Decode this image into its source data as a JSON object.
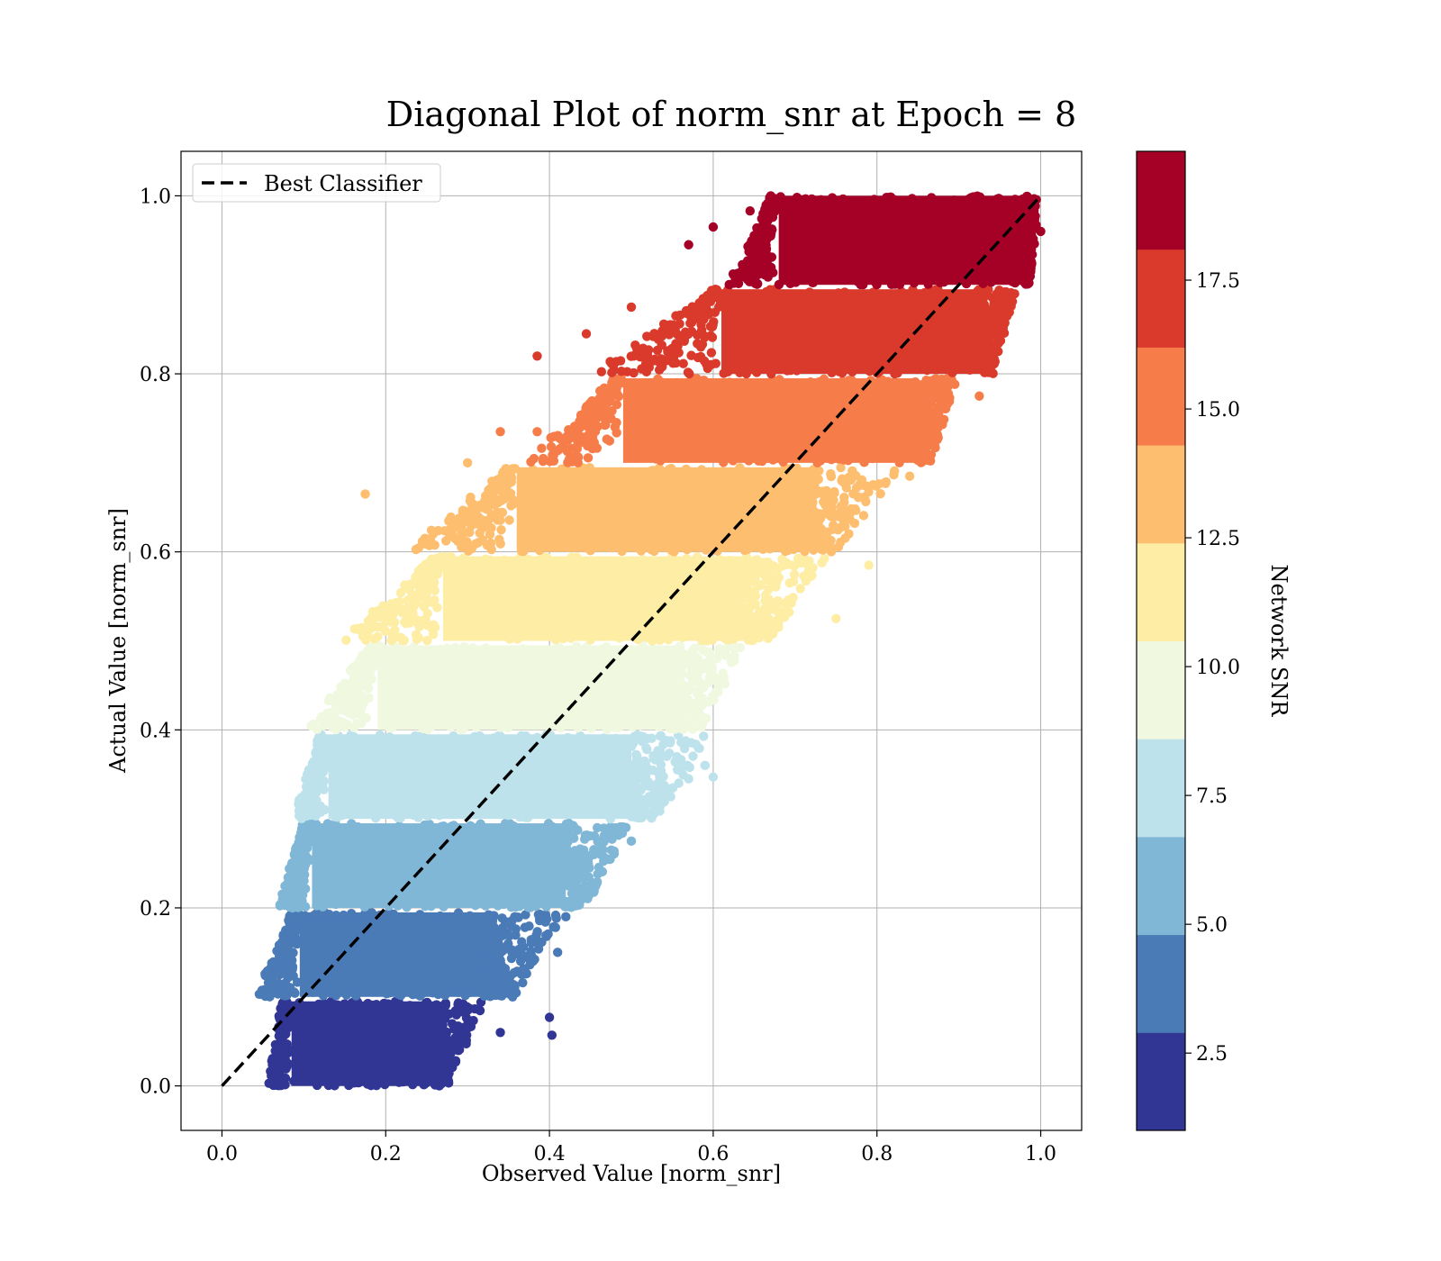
{
  "chart_data": {
    "type": "scatter",
    "title": "Diagonal Plot of norm_snr at Epoch = 8",
    "xlabel": "Observed Value [norm_snr]",
    "ylabel": "Actual Value [norm_snr]",
    "xlim": [
      -0.05,
      1.05
    ],
    "ylim": [
      -0.05,
      1.05
    ],
    "xticks": [
      0.0,
      0.2,
      0.4,
      0.6,
      0.8,
      1.0
    ],
    "yticks": [
      0.0,
      0.2,
      0.4,
      0.6,
      0.8,
      1.0
    ],
    "xtick_labels": [
      "0.0",
      "0.2",
      "0.4",
      "0.6",
      "0.8",
      "1.0"
    ],
    "ytick_labels": [
      "0.0",
      "0.2",
      "0.4",
      "0.6",
      "0.8",
      "1.0"
    ],
    "grid": true,
    "legend": {
      "position": "top-left",
      "entries": [
        {
          "label": "Best Classifier",
          "style": "dashed",
          "color": "#000000"
        }
      ]
    },
    "reference_line": {
      "x": [
        0.0,
        1.0
      ],
      "y": [
        0.0,
        1.0
      ]
    },
    "colorbar": {
      "label": "Network SNR",
      "range": [
        1.0,
        20.0
      ],
      "ticks": [
        2.5,
        5.0,
        7.5,
        10.0,
        12.5,
        15.0,
        17.5
      ],
      "tick_labels": [
        "2.5",
        "5.0",
        "7.5",
        "10.0",
        "12.5",
        "15.0",
        "17.5"
      ],
      "colors": [
        "#313695",
        "#4575b4",
        "#74add1",
        "#abd9e9",
        "#e0f3f8",
        "#ffffbf",
        "#fee090",
        "#fdae61",
        "#f46d43",
        "#d73027",
        "#a50026"
      ],
      "display_colors": [
        "#313695",
        "#4a7bb7",
        "#80b6d6",
        "#bde2ec",
        "#f0f8e0",
        "#feeda4",
        "#fdbe70",
        "#f67d4a",
        "#da3a2b",
        "#a50026"
      ]
    },
    "bands": [
      {
        "y_range": [
          0.0,
          0.095
        ],
        "snr": 1.9,
        "x_core": [
          0.085,
          0.26
        ],
        "x_min": 0.05,
        "x_max": 0.32
      },
      {
        "y_range": [
          0.1,
          0.195
        ],
        "snr": 3.8,
        "x_core": [
          0.095,
          0.33
        ],
        "x_min": 0.03,
        "x_max": 0.42
      },
      {
        "y_range": [
          0.2,
          0.295
        ],
        "snr": 5.7,
        "x_core": [
          0.11,
          0.42
        ],
        "x_min": 0.06,
        "x_max": 0.5
      },
      {
        "y_range": [
          0.3,
          0.395
        ],
        "snr": 7.6,
        "x_core": [
          0.13,
          0.5
        ],
        "x_min": 0.08,
        "x_max": 0.6
      },
      {
        "y_range": [
          0.4,
          0.495
        ],
        "snr": 9.5,
        "x_core": [
          0.19,
          0.56
        ],
        "x_min": 0.07,
        "x_max": 0.64
      },
      {
        "y_range": [
          0.5,
          0.595
        ],
        "snr": 11.4,
        "x_core": [
          0.27,
          0.64
        ],
        "x_min": 0.09,
        "x_max": 0.74
      },
      {
        "y_range": [
          0.6,
          0.695
        ],
        "snr": 13.3,
        "x_core": [
          0.36,
          0.72
        ],
        "x_min": 0.16,
        "x_max": 0.83
      },
      {
        "y_range": [
          0.7,
          0.795
        ],
        "snr": 15.2,
        "x_core": [
          0.49,
          0.85
        ],
        "x_min": 0.32,
        "x_max": 0.9
      },
      {
        "y_range": [
          0.8,
          0.895
        ],
        "snr": 17.1,
        "x_core": [
          0.61,
          0.93
        ],
        "x_min": 0.38,
        "x_max": 0.97
      },
      {
        "y_range": [
          0.9,
          1.0
        ],
        "snr": 19.0,
        "x_core": [
          0.68,
          0.98
        ],
        "x_min": 0.6,
        "x_max": 1.0
      }
    ],
    "outliers": [
      {
        "x": 0.175,
        "y": 0.665,
        "snr": 13.3
      },
      {
        "x": 0.3,
        "y": 0.7,
        "snr": 13.3
      },
      {
        "x": 0.34,
        "y": 0.735,
        "snr": 15.2
      },
      {
        "x": 0.385,
        "y": 0.82,
        "snr": 17.1
      },
      {
        "x": 0.445,
        "y": 0.845,
        "snr": 17.1
      },
      {
        "x": 0.5,
        "y": 0.875,
        "snr": 17.1
      },
      {
        "x": 0.57,
        "y": 0.945,
        "snr": 19.0
      },
      {
        "x": 0.6,
        "y": 0.965,
        "snr": 19.0
      },
      {
        "x": 0.645,
        "y": 0.983,
        "snr": 19.0
      },
      {
        "x": 0.385,
        "y": 0.735,
        "snr": 15.2
      },
      {
        "x": 0.4,
        "y": 0.077,
        "snr": 1.9
      },
      {
        "x": 0.403,
        "y": 0.057,
        "snr": 1.9
      },
      {
        "x": 0.38,
        "y": 0.14,
        "snr": 3.8
      },
      {
        "x": 0.41,
        "y": 0.15,
        "snr": 3.8
      },
      {
        "x": 0.42,
        "y": 0.19,
        "snr": 3.8
      },
      {
        "x": 0.5,
        "y": 0.275,
        "snr": 5.7
      },
      {
        "x": 0.57,
        "y": 0.345,
        "snr": 7.6
      },
      {
        "x": 0.59,
        "y": 0.36,
        "snr": 7.6
      },
      {
        "x": 0.6,
        "y": 0.347,
        "snr": 7.6
      },
      {
        "x": 0.34,
        "y": 0.06,
        "snr": 1.9
      },
      {
        "x": 0.355,
        "y": 0.1,
        "snr": 3.8
      },
      {
        "x": 0.97,
        "y": 0.96,
        "snr": 19.0
      },
      {
        "x": 1.0,
        "y": 0.96,
        "snr": 19.0
      },
      {
        "x": 0.955,
        "y": 0.875,
        "snr": 17.1
      },
      {
        "x": 0.925,
        "y": 0.775,
        "snr": 15.2
      },
      {
        "x": 0.84,
        "y": 0.685,
        "snr": 13.3
      },
      {
        "x": 0.79,
        "y": 0.585,
        "snr": 11.4
      },
      {
        "x": 0.75,
        "y": 0.525,
        "snr": 11.4
      }
    ]
  }
}
